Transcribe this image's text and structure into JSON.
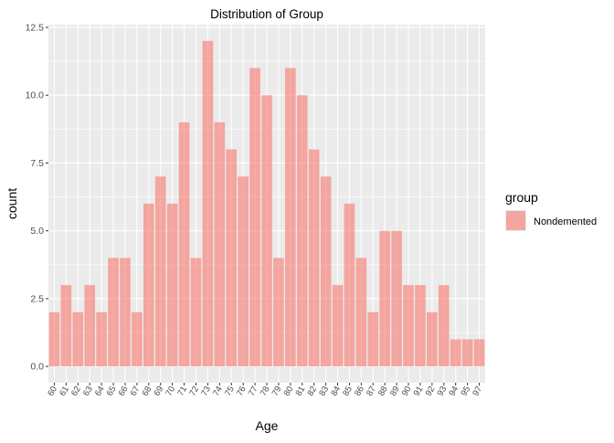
{
  "chart_data": {
    "type": "bar",
    "title": "Distribution of Group",
    "xlabel": "Age",
    "ylabel": "count",
    "categories": [
      "60",
      "61",
      "62",
      "63",
      "64",
      "65",
      "66",
      "67",
      "68",
      "69",
      "70",
      "71",
      "72",
      "73",
      "74",
      "75",
      "76",
      "77",
      "78",
      "79",
      "80",
      "81",
      "82",
      "83",
      "84",
      "85",
      "86",
      "87",
      "88",
      "89",
      "90",
      "91",
      "92",
      "93",
      "94",
      "95",
      "97"
    ],
    "series": [
      {
        "name": "Nondemented",
        "color": "#F8766D",
        "values": [
          2,
          3,
          2,
          3,
          2,
          4,
          4,
          2,
          6,
          7,
          6,
          9,
          4,
          12,
          9,
          8,
          7,
          11,
          10,
          4,
          11,
          10,
          8,
          7,
          3,
          6,
          4,
          2,
          5,
          5,
          3,
          3,
          2,
          3,
          1,
          1,
          1
        ]
      }
    ],
    "ylim": [
      -0.6,
      12.6
    ],
    "yticks": [
      0.0,
      2.5,
      5.0,
      7.5,
      10.0,
      12.5
    ],
    "ytick_labels": [
      "0.0",
      "2.5",
      "5.0",
      "7.5",
      "10.0",
      "12.5"
    ],
    "legend": {
      "title": "group",
      "position": "right"
    },
    "grid": true,
    "panel_background": "#EBEBEB",
    "bar_alpha": 0.6
  }
}
